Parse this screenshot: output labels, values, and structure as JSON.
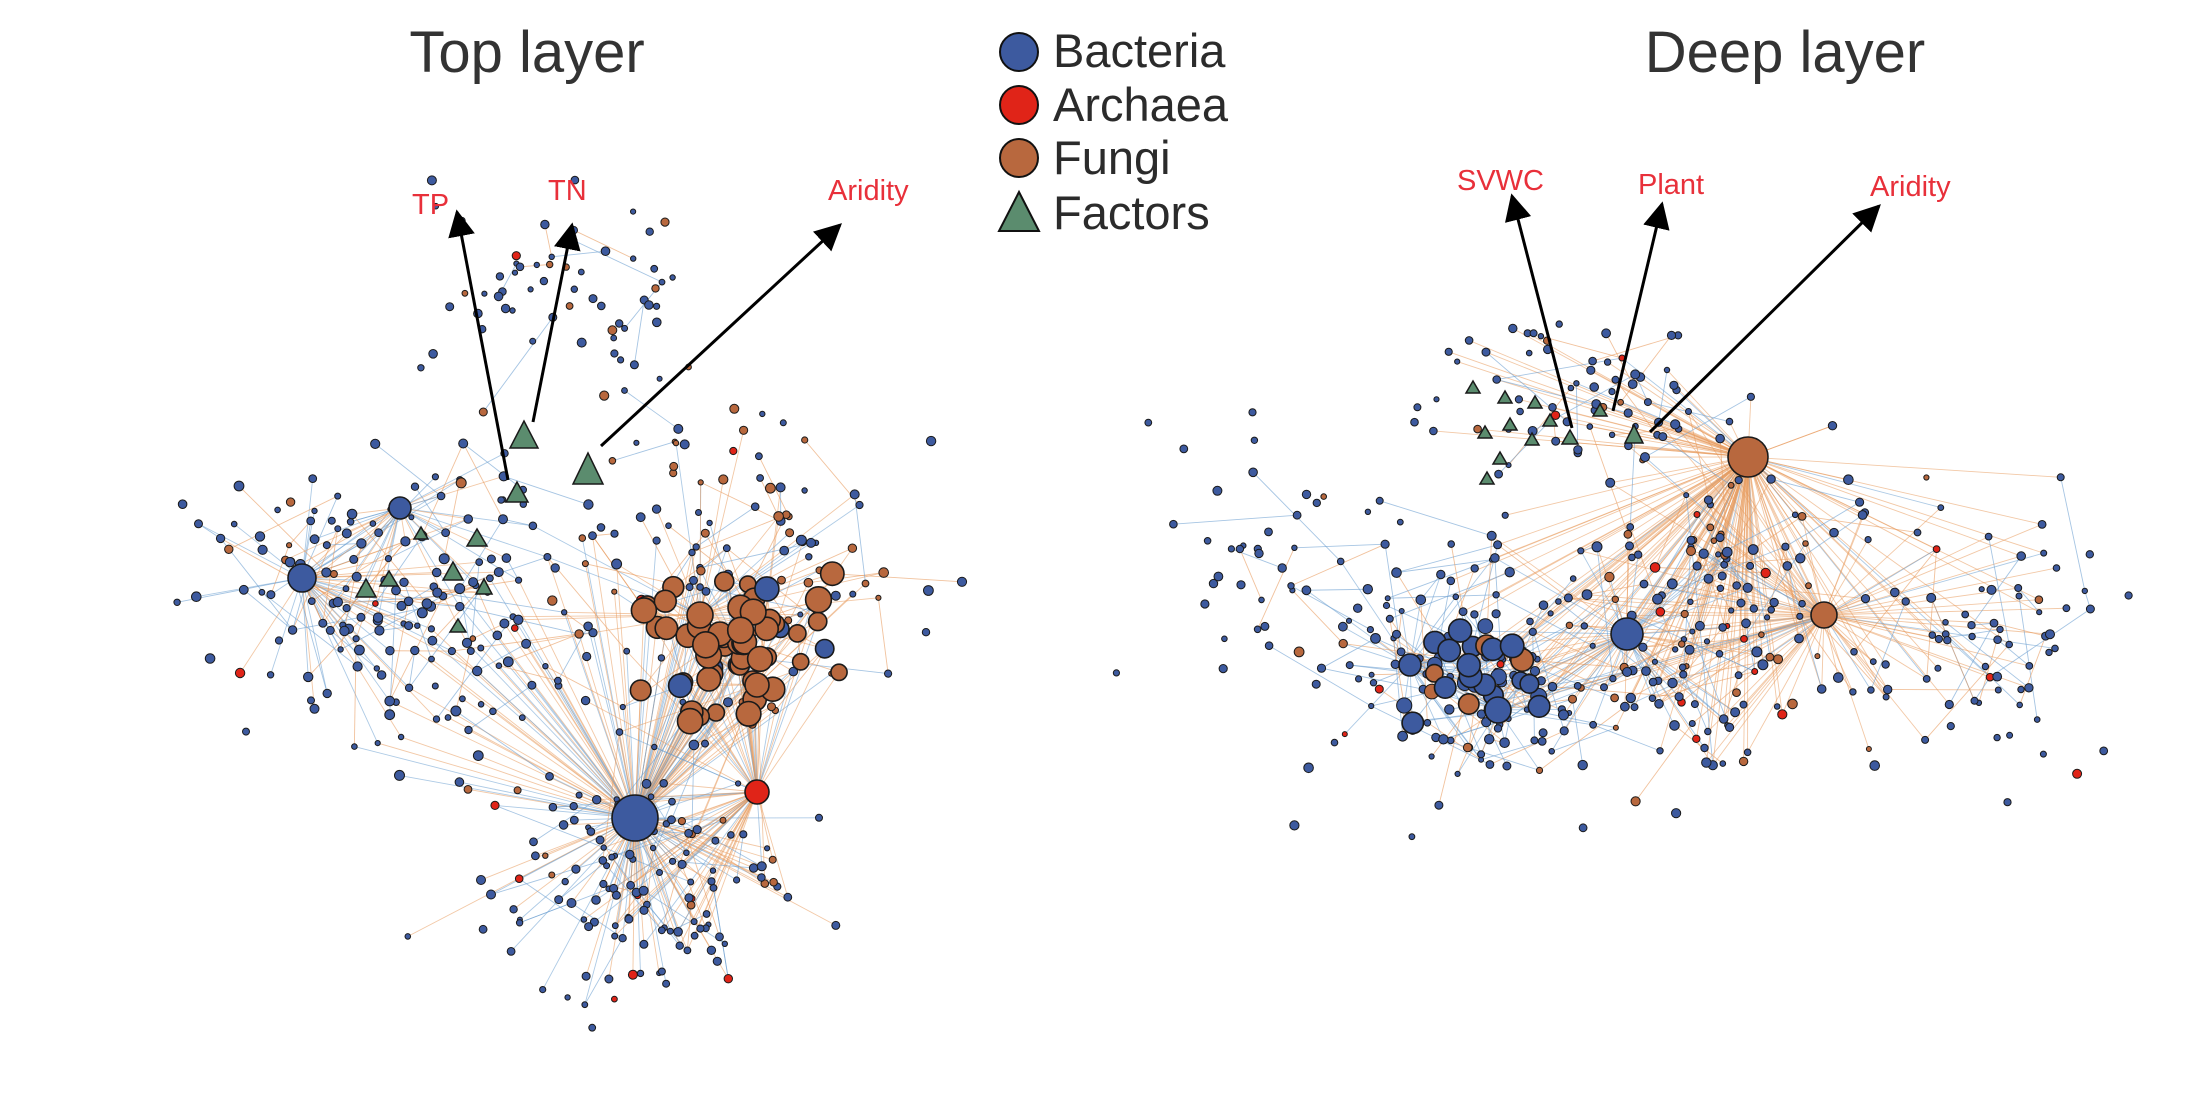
{
  "panels": {
    "top": {
      "title": "Top layer",
      "factor_labels": [
        "TP",
        "TN",
        "Aridity"
      ]
    },
    "deep": {
      "title": "Deep layer",
      "factor_labels": [
        "SVWC",
        "Plant",
        "Aridity"
      ]
    }
  },
  "legend": [
    {
      "label": "Bacteria",
      "shape": "circle",
      "color": "#3d5a9f"
    },
    {
      "label": "Archaea",
      "shape": "circle",
      "color": "#e02418"
    },
    {
      "label": "Fungi",
      "shape": "circle",
      "color": "#b8683e"
    },
    {
      "label": "Factors",
      "shape": "triangle",
      "color": "#5b8c6e"
    }
  ],
  "colors": {
    "bacteria": "#3d5a9f",
    "archaea": "#e02418",
    "fungi": "#b8683e",
    "factors": "#5b8c6e",
    "edge_positive": "#e89a5c",
    "edge_negative": "#6a9ed0",
    "factor_label": "#e8303a",
    "arrow": "#000000"
  }
}
